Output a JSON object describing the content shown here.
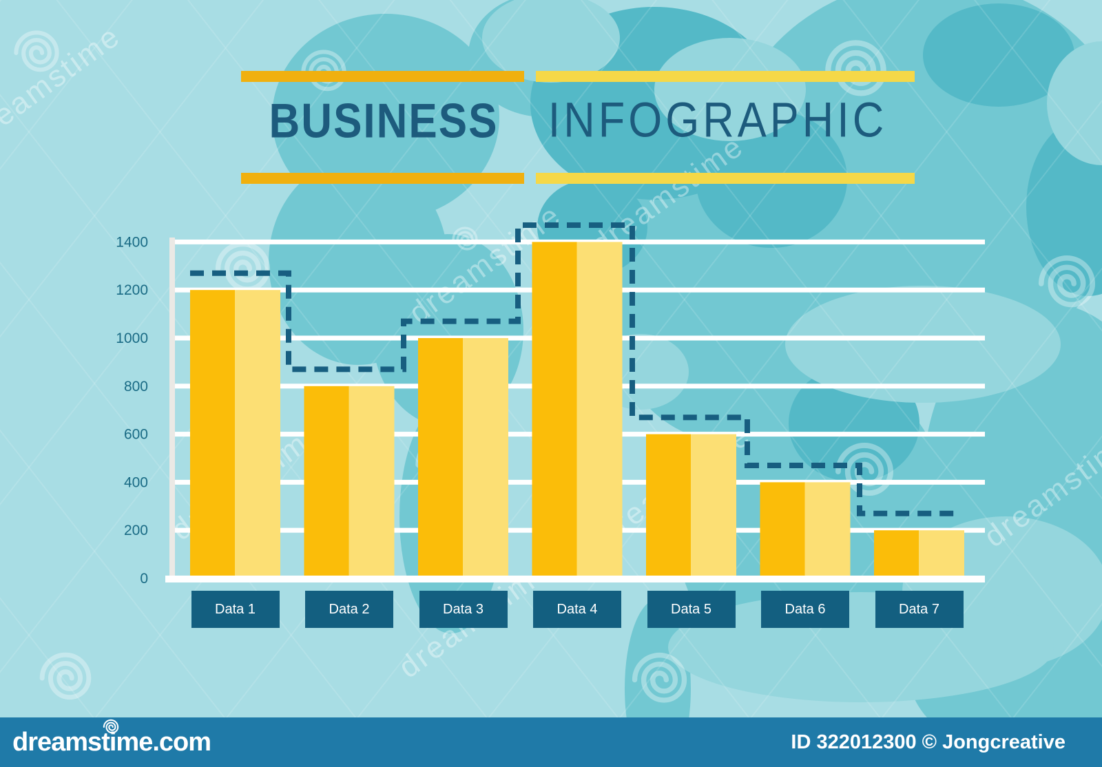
{
  "header": {
    "title_left": "BUSINESS",
    "title_right": "INFOGRAPHIC"
  },
  "chart_data": {
    "type": "bar",
    "title": "BUSINESS INFOGRAPHIC",
    "categories": [
      "Data 1",
      "Data 2",
      "Data 3",
      "Data 4",
      "Data 5",
      "Data 6",
      "Data 7"
    ],
    "series": [
      {
        "name": "bars",
        "values": [
          1200,
          800,
          1000,
          1400,
          600,
          400,
          200
        ]
      },
      {
        "name": "dashed-step-line",
        "values": [
          1270,
          870,
          1070,
          1470,
          670,
          470,
          270
        ]
      }
    ],
    "yticks": [
      0,
      200,
      400,
      600,
      800,
      1000,
      1200,
      1400
    ],
    "ylim": [
      0,
      1400
    ],
    "xlabel": "",
    "ylabel": "",
    "grid": true,
    "legend": false
  },
  "watermark": {
    "site": "dreamstime.com",
    "credit": "ID 322012300 © Jongcreative",
    "tiled_text": "dreamstime"
  },
  "colors": {
    "background": "#a8dde4",
    "map_mid": "#72c8d2",
    "map_dark": "#54b9c7",
    "map_light": "#95d6dd",
    "accent_orange": "#f0b00f",
    "accent_yellow": "#f5d848",
    "title_blue": "#1d5b7d",
    "bar_dark": "#fbbd09",
    "bar_light": "#fcdf74",
    "grid_white": "#ffffff",
    "axis_gray": "#ebe9e5",
    "step_line": "#175e80",
    "label_box": "#135f80",
    "label_text": "#ffffff",
    "axis_text": "#1a6b85",
    "footer_bar": "#1f7aa8",
    "footer_text": "#ffffff",
    "watermark_white": "rgba(255,255,255,0.38)"
  }
}
